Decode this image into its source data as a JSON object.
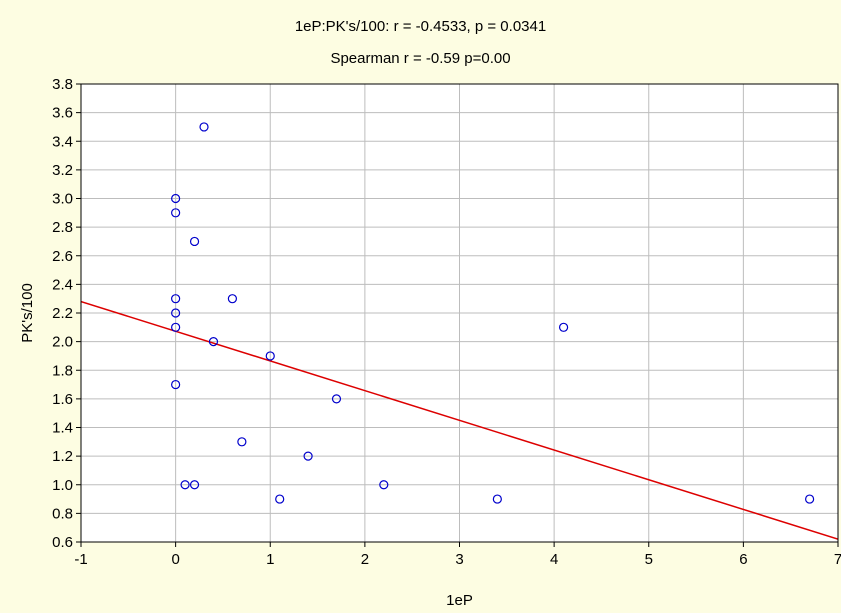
{
  "chart_data": {
    "type": "scatter",
    "title": "1eP:PK's/100:   r = -0.4533, p = 0.0341",
    "subtitle": "Spearman r = -0.59 p=0.00",
    "xlabel": "1eP",
    "ylabel": "PK's/100",
    "xlim": [
      -1,
      7
    ],
    "ylim": [
      0.6,
      3.8
    ],
    "x_ticks": [
      "-1",
      "0",
      "1",
      "2",
      "3",
      "4",
      "5",
      "6",
      "7"
    ],
    "y_ticks": [
      "0.6",
      "0.8",
      "1.0",
      "1.2",
      "1.4",
      "1.6",
      "1.8",
      "2.0",
      "2.2",
      "2.4",
      "2.6",
      "2.8",
      "3.0",
      "3.2",
      "3.4",
      "3.6",
      "3.8"
    ],
    "grid": true,
    "points": [
      {
        "x": 0.3,
        "y": 3.5
      },
      {
        "x": 0.0,
        "y": 3.0
      },
      {
        "x": 0.0,
        "y": 2.9
      },
      {
        "x": 0.2,
        "y": 2.7
      },
      {
        "x": 0.0,
        "y": 2.3
      },
      {
        "x": 0.6,
        "y": 2.3
      },
      {
        "x": 0.0,
        "y": 2.2
      },
      {
        "x": 0.0,
        "y": 2.1
      },
      {
        "x": 4.1,
        "y": 2.1
      },
      {
        "x": 0.4,
        "y": 2.0
      },
      {
        "x": 1.0,
        "y": 1.9
      },
      {
        "x": 0.0,
        "y": 1.7
      },
      {
        "x": 1.7,
        "y": 1.6
      },
      {
        "x": 0.7,
        "y": 1.3
      },
      {
        "x": 1.4,
        "y": 1.2
      },
      {
        "x": 0.1,
        "y": 1.0
      },
      {
        "x": 0.2,
        "y": 1.0
      },
      {
        "x": 2.2,
        "y": 1.0
      },
      {
        "x": 1.1,
        "y": 0.9
      },
      {
        "x": 3.4,
        "y": 0.9
      },
      {
        "x": 6.7,
        "y": 0.9
      }
    ],
    "regression_line": {
      "x": [
        -1,
        7
      ],
      "y": [
        2.28,
        0.62
      ]
    },
    "colors": {
      "background": "#fdfde2",
      "plot_area": "#ffffff",
      "grid": "#bdbdbd",
      "marker": "#0000cc",
      "regression": "#dd0000"
    }
  }
}
